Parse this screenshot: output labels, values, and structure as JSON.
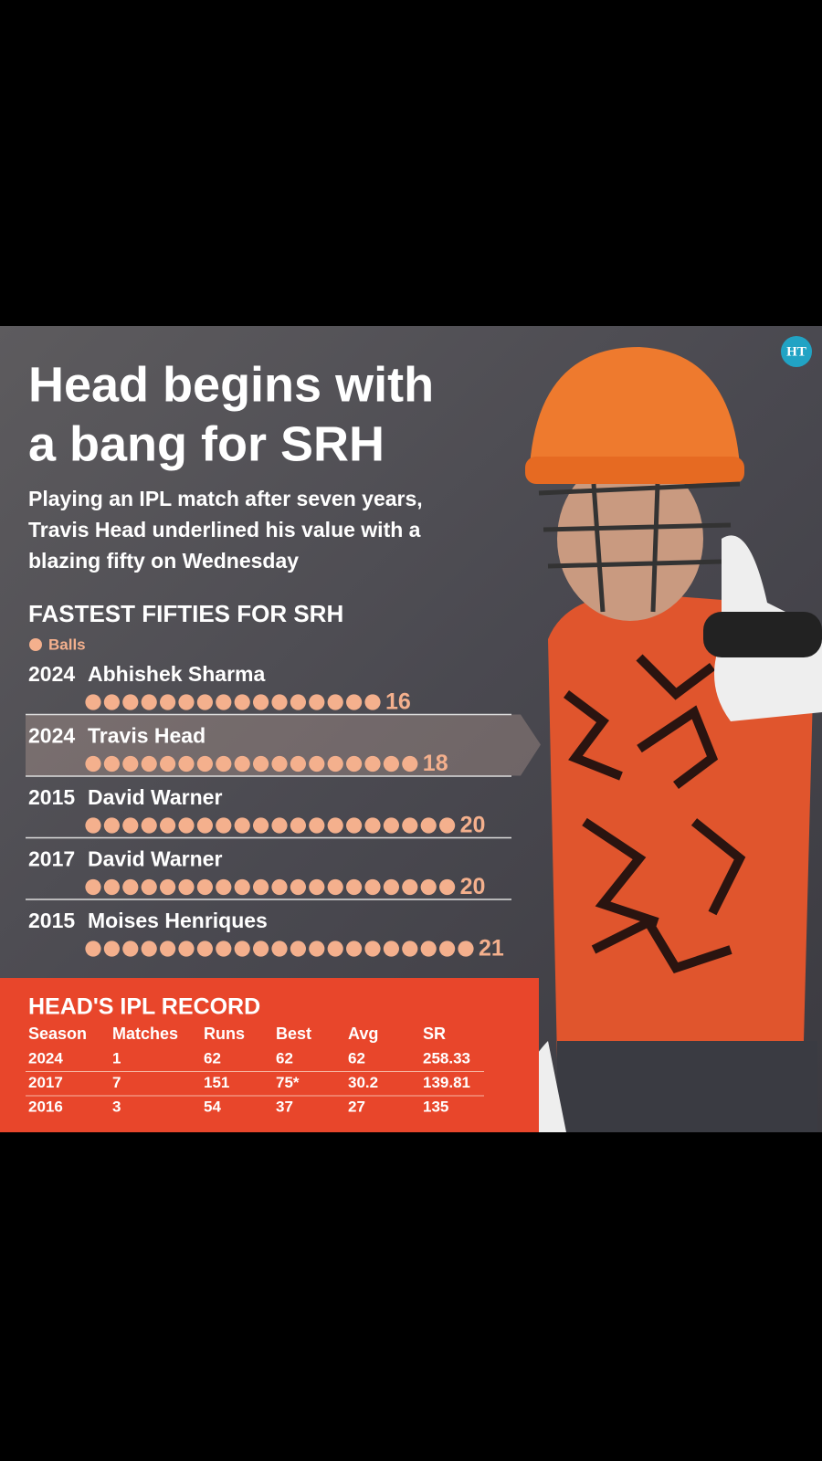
{
  "header": {
    "logo": "HT",
    "title": [
      "Head begins with",
      "a bang for SRH"
    ],
    "subtitle": [
      "Playing an IPL match after seven years,",
      "Travis Head underlined his value with a",
      "blazing fifty on Wednesday"
    ]
  },
  "chart_data": {
    "type": "dots",
    "title": "FASTEST FIFTIES FOR SRH",
    "legend": "Balls",
    "color": "#f4b08d",
    "years": [
      "2024",
      "2024",
      "2015",
      "2017",
      "2015"
    ],
    "categories": [
      "Abhishek Sharma",
      "Travis Head",
      "David Warner",
      "David Warner",
      "Moises Henriques"
    ],
    "values": [
      16,
      18,
      20,
      20,
      21
    ]
  },
  "table": {
    "title": "HEAD'S IPL RECORD",
    "columns": [
      "Season",
      "Matches",
      "Runs",
      "Best",
      "Avg",
      "SR"
    ],
    "rows": [
      [
        "2024",
        "1",
        "62",
        "62",
        "62",
        "258.33"
      ],
      [
        "2017",
        "7",
        "151",
        "75*",
        "30.2",
        "139.81"
      ],
      [
        "2016",
        "3",
        "54",
        "37",
        "27",
        "135"
      ]
    ]
  }
}
